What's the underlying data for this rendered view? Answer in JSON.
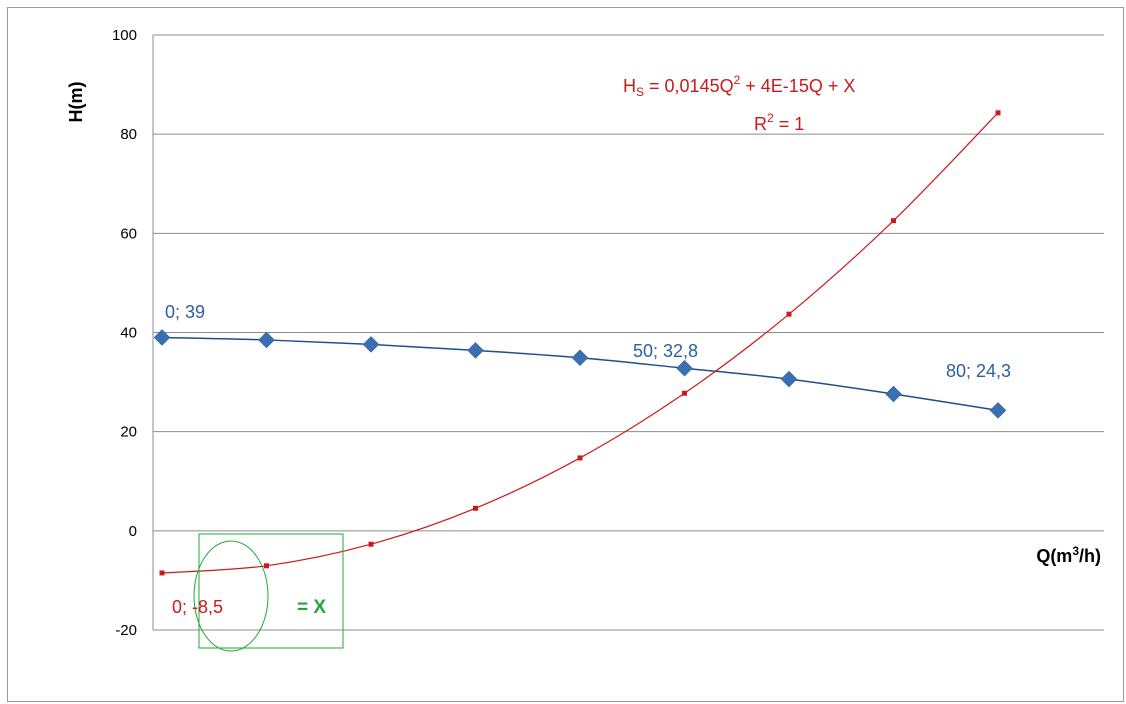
{
  "chart_data": {
    "type": "scatter",
    "xlabel": "Q(m³/h)",
    "ylabel": "H(m)",
    "ylim": [
      -20,
      100
    ],
    "xlim": [
      0,
      80
    ],
    "yticks": [
      "100",
      "80",
      "60",
      "40",
      "20",
      "0",
      "-20"
    ],
    "grid": true,
    "legend": "none",
    "series": [
      {
        "color": "#3b6fb0",
        "marker": "diamond",
        "x": [
          0,
          10,
          20,
          30,
          40,
          50,
          60,
          70,
          80
        ],
        "values": [
          39,
          38.5,
          37.6,
          36.4,
          34.9,
          32.8,
          30.6,
          27.6,
          24.3
        ]
      },
      {
        "color": "#cc1a1a",
        "marker": "square",
        "x": [
          0,
          10,
          20,
          30,
          40,
          50,
          60,
          70,
          80
        ],
        "values": [
          -8.5,
          -7.05,
          -2.7,
          4.55,
          14.7,
          27.75,
          43.7,
          62.55,
          84.3
        ]
      }
    ],
    "annotations": {
      "p_start_blue": "0; 39",
      "p_mid_blue": "50; 32,8",
      "p_end_blue": "80; 24,3",
      "p_start_red": "0; -8,5",
      "equals_x": "= X",
      "trend_equation_prefix": "H",
      "trend_equation_sub": "S",
      "trend_equation_a": " = 0,0145Q",
      "trend_equation_sup": "2",
      "trend_equation_b": " + 4E-15Q + X",
      "r_squared_prefix": "R",
      "r_squared_sup": "2",
      "r_squared_suffix": " = 1"
    },
    "highlight_color": "#22a83a"
  }
}
